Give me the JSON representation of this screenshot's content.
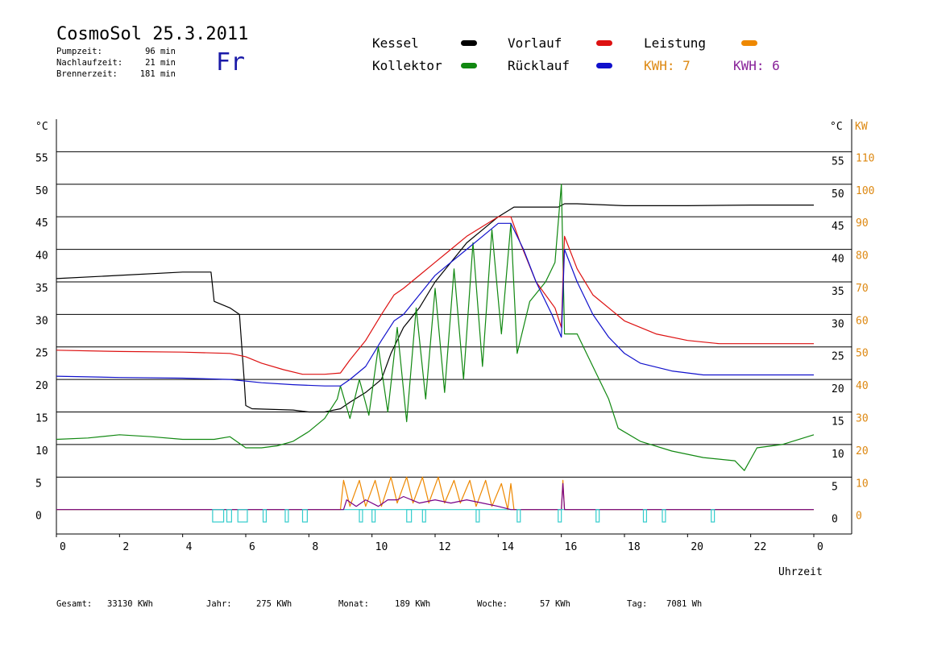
{
  "header": {
    "title": "CosmoSol 25.3.2011",
    "day": "Fr",
    "stats": [
      {
        "label": "Pumpzeit:",
        "value": "96 min"
      },
      {
        "label": "Nachlaufzeit:",
        "value": "21 min"
      },
      {
        "label": "Brennerzeit:",
        "value": "181 min"
      }
    ]
  },
  "legend": {
    "items": [
      {
        "label": "Kessel",
        "color": "#000000"
      },
      {
        "label": "Vorlauf",
        "color": "#dd1111"
      },
      {
        "label": "Leistung",
        "color": "#ee8800"
      },
      {
        "label": "Kollektor",
        "color": "#118811"
      },
      {
        "label": "Rücklauf",
        "color": "#1111cc"
      }
    ],
    "kwh_orange": "KWH: 7",
    "kwh_purple": "KWH: 6"
  },
  "footer": {
    "items": [
      {
        "label": "Gesamt:",
        "value": "33130 KWh"
      },
      {
        "label": "Jahr:",
        "value": "275 KWh"
      },
      {
        "label": "Monat:",
        "value": "189 KWh"
      },
      {
        "label": "Woche:",
        "value": "57 KWh"
      },
      {
        "label": "Tag:",
        "value": "7081 Wh"
      }
    ]
  },
  "chart_data": {
    "type": "line",
    "xlabel": "Uhrzeit",
    "ylabel_left": "°C",
    "ylabel_right": "°C",
    "ylabel_right2": "KW",
    "x_tick_labels": [
      "0",
      "2",
      "4",
      "6",
      "8",
      "10",
      "12",
      "14",
      "16",
      "18",
      "20",
      "22",
      "0"
    ],
    "y_tick_labels": [
      "0",
      "5",
      "10",
      "15",
      "20",
      "25",
      "30",
      "35",
      "40",
      "45",
      "50",
      "55"
    ],
    "y2_tick_labels": [
      "0",
      "10",
      "20",
      "30",
      "40",
      "50",
      "60",
      "70",
      "80",
      "90",
      "100",
      "110"
    ],
    "xlim": [
      0,
      24
    ],
    "ylim": [
      -3.75,
      60
    ],
    "grid": true,
    "series": [
      {
        "name": "Kessel",
        "color": "#000000",
        "points": [
          [
            0,
            35.5
          ],
          [
            2,
            36
          ],
          [
            4,
            36.5
          ],
          [
            4.9,
            36.5
          ],
          [
            5.0,
            32
          ],
          [
            5.5,
            31
          ],
          [
            5.8,
            30
          ],
          [
            5.95,
            20
          ],
          [
            6.0,
            16
          ],
          [
            6.2,
            15.5
          ],
          [
            7.5,
            15.3
          ],
          [
            8.0,
            15
          ],
          [
            8.5,
            15
          ],
          [
            9.0,
            15.5
          ],
          [
            9.3,
            16.5
          ],
          [
            9.8,
            18
          ],
          [
            10.3,
            20
          ],
          [
            10.6,
            24
          ],
          [
            11.0,
            28
          ],
          [
            11.5,
            31
          ],
          [
            12.0,
            35
          ],
          [
            12.5,
            38
          ],
          [
            13.0,
            41
          ],
          [
            13.5,
            43
          ],
          [
            14.0,
            45
          ],
          [
            14.5,
            46.5
          ],
          [
            15.0,
            46.5
          ],
          [
            15.9,
            46.5
          ],
          [
            16.1,
            47
          ],
          [
            16.5,
            47
          ],
          [
            18,
            46.7
          ],
          [
            20,
            46.7
          ],
          [
            22,
            46.8
          ],
          [
            23.5,
            46.8
          ],
          [
            24,
            46.8
          ]
        ]
      },
      {
        "name": "Vorlauf",
        "color": "#dd1111",
        "points": [
          [
            0,
            24.5
          ],
          [
            2,
            24.3
          ],
          [
            4,
            24.2
          ],
          [
            5.5,
            24
          ],
          [
            6.0,
            23.5
          ],
          [
            6.5,
            22.5
          ],
          [
            7.2,
            21.5
          ],
          [
            7.8,
            20.8
          ],
          [
            8.5,
            20.8
          ],
          [
            9.0,
            21
          ],
          [
            9.3,
            23
          ],
          [
            9.8,
            26
          ],
          [
            10.3,
            30
          ],
          [
            10.7,
            33
          ],
          [
            11.0,
            34
          ],
          [
            11.5,
            36
          ],
          [
            12.0,
            38
          ],
          [
            12.5,
            40
          ],
          [
            13.0,
            42
          ],
          [
            13.5,
            43.5
          ],
          [
            14.0,
            45
          ],
          [
            14.4,
            45
          ],
          [
            14.7,
            41
          ],
          [
            15.2,
            35
          ],
          [
            15.8,
            31
          ],
          [
            16.0,
            28
          ],
          [
            16.1,
            42
          ],
          [
            16.5,
            37
          ],
          [
            17.0,
            33
          ],
          [
            18.0,
            29
          ],
          [
            19.0,
            27
          ],
          [
            20.0,
            26
          ],
          [
            21.0,
            25.5
          ],
          [
            22.0,
            25.5
          ],
          [
            23.0,
            25.5
          ],
          [
            24,
            25.5
          ]
        ]
      },
      {
        "name": "Rücklauf",
        "color": "#1111cc",
        "points": [
          [
            0,
            20.5
          ],
          [
            2,
            20.3
          ],
          [
            4,
            20.2
          ],
          [
            5.5,
            20
          ],
          [
            6.5,
            19.5
          ],
          [
            7.5,
            19.2
          ],
          [
            8.5,
            19
          ],
          [
            9.0,
            19
          ],
          [
            9.3,
            20
          ],
          [
            9.8,
            22
          ],
          [
            10.3,
            26
          ],
          [
            10.7,
            29
          ],
          [
            11.0,
            30
          ],
          [
            11.5,
            33
          ],
          [
            12.0,
            36
          ],
          [
            12.5,
            38
          ],
          [
            13.0,
            40
          ],
          [
            13.5,
            42
          ],
          [
            14.0,
            44
          ],
          [
            14.4,
            44
          ],
          [
            14.8,
            40
          ],
          [
            15.2,
            35
          ],
          [
            15.7,
            30
          ],
          [
            16.0,
            26.5
          ],
          [
            16.1,
            40
          ],
          [
            16.5,
            35
          ],
          [
            17.0,
            30
          ],
          [
            17.5,
            26.5
          ],
          [
            18.0,
            24
          ],
          [
            18.5,
            22.5
          ],
          [
            19.5,
            21.3
          ],
          [
            20.5,
            20.7
          ],
          [
            22.0,
            20.7
          ],
          [
            24,
            20.7
          ]
        ]
      },
      {
        "name": "Kollektor",
        "color": "#118811",
        "points": [
          [
            0,
            10.8
          ],
          [
            1,
            11
          ],
          [
            2,
            11.5
          ],
          [
            3,
            11.2
          ],
          [
            4,
            10.8
          ],
          [
            5,
            10.8
          ],
          [
            5.5,
            11.2
          ],
          [
            6.0,
            9.5
          ],
          [
            6.5,
            9.5
          ],
          [
            7.0,
            9.8
          ],
          [
            7.5,
            10.5
          ],
          [
            8.0,
            12
          ],
          [
            8.5,
            14
          ],
          [
            8.9,
            17
          ],
          [
            9.0,
            19
          ],
          [
            9.3,
            14
          ],
          [
            9.6,
            20
          ],
          [
            9.9,
            14.5
          ],
          [
            10.2,
            25
          ],
          [
            10.5,
            15
          ],
          [
            10.8,
            28
          ],
          [
            11.1,
            13.5
          ],
          [
            11.4,
            31
          ],
          [
            11.7,
            17
          ],
          [
            12.0,
            34
          ],
          [
            12.3,
            18
          ],
          [
            12.6,
            37
          ],
          [
            12.9,
            20
          ],
          [
            13.2,
            41
          ],
          [
            13.5,
            22
          ],
          [
            13.8,
            43
          ],
          [
            14.1,
            27
          ],
          [
            14.4,
            44
          ],
          [
            14.6,
            24
          ],
          [
            15.0,
            32
          ],
          [
            15.5,
            35
          ],
          [
            15.8,
            38
          ],
          [
            16.0,
            50
          ],
          [
            16.1,
            27
          ],
          [
            16.5,
            27
          ],
          [
            17.0,
            22
          ],
          [
            17.5,
            17
          ],
          [
            17.8,
            12.5
          ],
          [
            18.5,
            10.5
          ],
          [
            19.5,
            9
          ],
          [
            20.5,
            8
          ],
          [
            21.5,
            7.5
          ],
          [
            21.8,
            6
          ],
          [
            22.2,
            9.5
          ],
          [
            23,
            10
          ],
          [
            24,
            11.5
          ]
        ]
      },
      {
        "name": "Leistung",
        "color": "#ee8800",
        "points": [
          [
            0,
            0
          ],
          [
            9.0,
            0
          ],
          [
            9.1,
            4.5
          ],
          [
            9.3,
            0.5
          ],
          [
            9.6,
            4.5
          ],
          [
            9.8,
            0.5
          ],
          [
            10.1,
            4.5
          ],
          [
            10.3,
            0.5
          ],
          [
            10.6,
            5
          ],
          [
            10.8,
            1
          ],
          [
            11.1,
            5
          ],
          [
            11.3,
            1
          ],
          [
            11.6,
            5
          ],
          [
            11.8,
            1
          ],
          [
            12.1,
            5
          ],
          [
            12.3,
            1
          ],
          [
            12.6,
            4.5
          ],
          [
            12.8,
            1
          ],
          [
            13.1,
            4.5
          ],
          [
            13.3,
            0.5
          ],
          [
            13.6,
            4.5
          ],
          [
            13.8,
            0.5
          ],
          [
            14.1,
            4
          ],
          [
            14.3,
            0
          ],
          [
            14.4,
            4
          ],
          [
            14.5,
            0
          ],
          [
            16.0,
            0
          ],
          [
            16.05,
            4.5
          ],
          [
            16.1,
            0
          ],
          [
            24,
            0
          ]
        ]
      },
      {
        "name": "Leistung2",
        "color": "#770088",
        "points": [
          [
            0,
            0
          ],
          [
            9.1,
            0
          ],
          [
            9.2,
            1.5
          ],
          [
            9.5,
            0.5
          ],
          [
            9.8,
            1.5
          ],
          [
            10.2,
            0.5
          ],
          [
            10.5,
            1.5
          ],
          [
            10.8,
            1.5
          ],
          [
            11.0,
            2
          ],
          [
            11.5,
            1
          ],
          [
            12.0,
            1.5
          ],
          [
            12.5,
            1
          ],
          [
            13.0,
            1.5
          ],
          [
            13.5,
            1
          ],
          [
            14.0,
            0.5
          ],
          [
            14.4,
            0
          ],
          [
            16.0,
            0
          ],
          [
            16.05,
            4
          ],
          [
            16.1,
            0
          ],
          [
            24,
            0
          ]
        ]
      },
      {
        "name": "Pumpe",
        "color": "#33cccc",
        "points": [
          [
            0,
            0
          ],
          [
            24,
            0
          ]
        ]
      }
    ],
    "pump_pulses": [
      [
        4.95,
        5.3
      ],
      [
        5.4,
        5.55
      ],
      [
        5.75,
        6.05
      ],
      [
        6.55,
        6.65
      ],
      [
        7.25,
        7.35
      ],
      [
        7.8,
        7.95
      ],
      [
        9.6,
        9.7
      ],
      [
        10.0,
        10.1
      ],
      [
        11.1,
        11.25
      ],
      [
        11.6,
        11.7
      ],
      [
        13.3,
        13.4
      ],
      [
        14.6,
        14.7
      ],
      [
        15.9,
        16.0
      ],
      [
        17.1,
        17.2
      ],
      [
        18.6,
        18.7
      ],
      [
        19.2,
        19.3
      ],
      [
        20.75,
        20.85
      ]
    ],
    "legend_position": "top"
  }
}
